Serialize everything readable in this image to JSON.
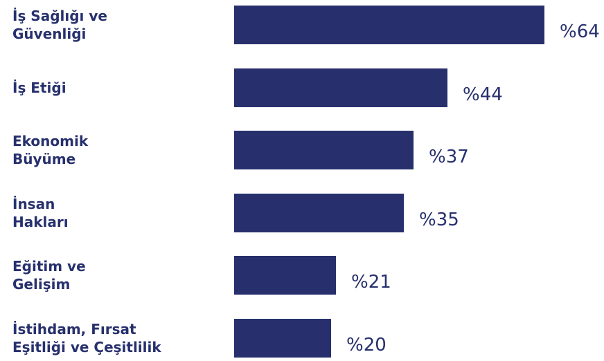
{
  "chart_data": {
    "type": "bar",
    "orientation": "horizontal",
    "categories": [
      "İş Sağlığı ve\nGüvenliği",
      "İş Etiği",
      "Ekonomik\nBüyüme",
      "İnsan\nHakları",
      "Eğitim ve\nGelişim",
      "İstihdam, Fırsat\nEşitliği ve Çeşitlilik"
    ],
    "values": [
      64,
      44,
      37,
      35,
      21,
      20
    ],
    "value_labels": [
      "%64",
      "%44",
      "%37",
      "%35",
      "%21",
      "%20"
    ],
    "xlim": [
      0,
      64
    ],
    "grid": false,
    "colors": {
      "bar": "#27306d",
      "text": "#27306d"
    }
  }
}
